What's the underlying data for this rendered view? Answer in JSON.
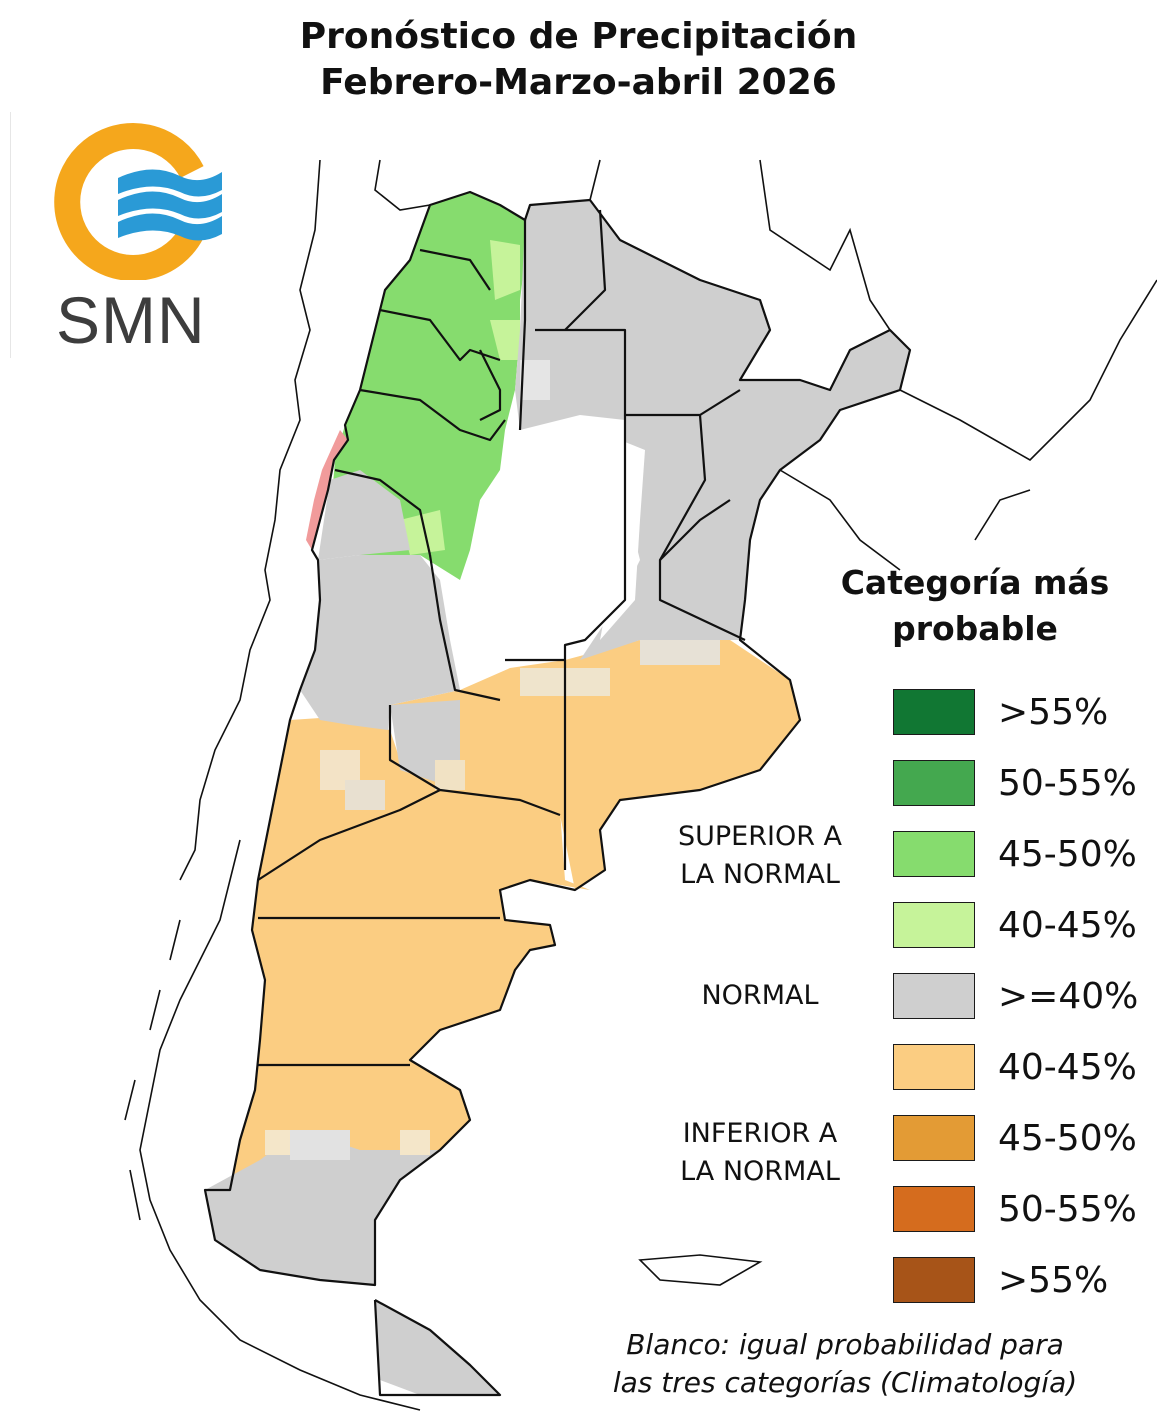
{
  "title": {
    "line1": "Pronóstico de Precipitación",
    "line2": "Febrero-Marzo-abril 2026"
  },
  "logo": {
    "text": "SMN",
    "colors": {
      "ring": "#f5a71c",
      "waves": "#2a9ad6",
      "text": "#3d3d3d"
    }
  },
  "legend": {
    "title_line1": "Categoría más",
    "title_line2": "probable",
    "items": [
      {
        "label": ">55%",
        "color": "#117733"
      },
      {
        "label": "50-55%",
        "color": "#44a84f"
      },
      {
        "label": "45-50%",
        "color": "#86dc6e"
      },
      {
        "label": "40-45%",
        "color": "#c6f39a"
      },
      {
        "label": ">=40%",
        "color": "#cfcfcf"
      },
      {
        "label": "40-45%",
        "color": "#fbcd82"
      },
      {
        "label": "45-50%",
        "color": "#e39b35"
      },
      {
        "label": "50-55%",
        "color": "#d56c1e"
      },
      {
        "label": ">55%",
        "color": "#a75418"
      }
    ],
    "categories": {
      "superior_line1": "SUPERIOR A",
      "superior_line2": "LA NORMAL",
      "normal": "NORMAL",
      "inferior_line1": "INFERIOR A",
      "inferior_line2": "LA NORMAL"
    }
  },
  "note": {
    "line1": "Blanco: igual probabilidad para",
    "line2": "las tres categorías (Climatología)"
  },
  "map_colors": {
    "above_45_50": "#86dc6e",
    "above_40_45": "#c6f39a",
    "normal": "#cfcfcf",
    "below_40_45": "#fbcd82",
    "climatology": "#ffffff",
    "dry_pink": "#f19b9b",
    "border": "#111111"
  }
}
